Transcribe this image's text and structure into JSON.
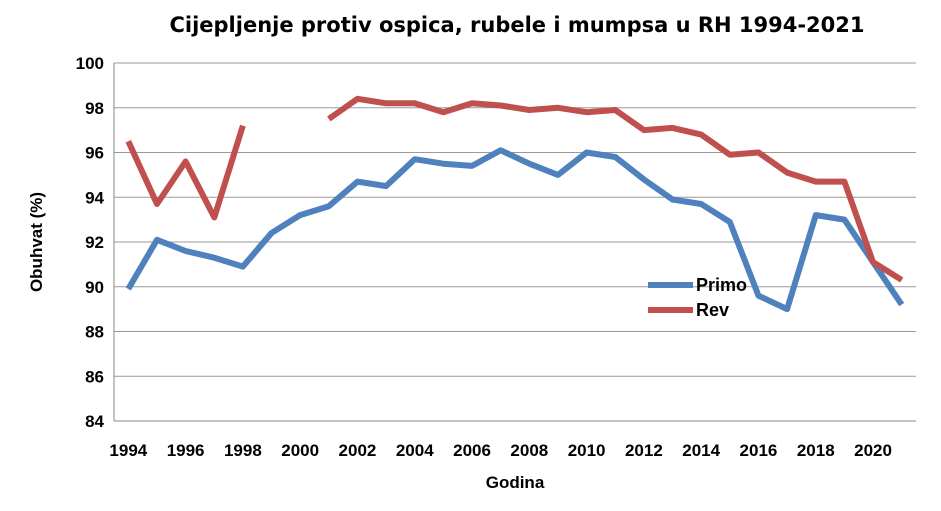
{
  "chart_data": {
    "type": "line",
    "title": "Cijepljenje protiv ospica, rubele i mumpsa u RH 1994-2021",
    "xlabel": "Godina",
    "ylabel": "Obuhvat (%)",
    "xlim": [
      1994,
      2021
    ],
    "ylim": [
      84,
      100
    ],
    "x_ticks": [
      "1994",
      "1996",
      "1998",
      "2000",
      "2002",
      "2004",
      "2006",
      "2008",
      "2010",
      "2012",
      "2014",
      "2016",
      "2018",
      "2020"
    ],
    "y_ticks": [
      "84",
      "86",
      "88",
      "90",
      "92",
      "94",
      "96",
      "98",
      "100"
    ],
    "grid": true,
    "legend_position": "right",
    "x": [
      1994,
      1995,
      1996,
      1997,
      1998,
      1999,
      2000,
      2001,
      2002,
      2003,
      2004,
      2005,
      2006,
      2007,
      2008,
      2009,
      2010,
      2011,
      2012,
      2013,
      2014,
      2015,
      2016,
      2017,
      2018,
      2019,
      2020,
      2021
    ],
    "series": [
      {
        "name": "Primo",
        "color": "#4F81BD",
        "values": [
          89.9,
          92.1,
          91.6,
          91.3,
          90.9,
          92.4,
          93.2,
          93.6,
          94.7,
          94.5,
          95.7,
          95.5,
          95.4,
          96.1,
          95.5,
          95.0,
          96.0,
          95.8,
          94.8,
          93.9,
          93.7,
          92.9,
          89.6,
          89.0,
          93.2,
          93.0,
          91.1,
          89.2
        ]
      },
      {
        "name": "Rev",
        "color": "#C0504D",
        "values": [
          96.5,
          93.7,
          95.6,
          93.1,
          97.2,
          null,
          null,
          97.5,
          98.4,
          98.2,
          98.2,
          97.8,
          98.2,
          98.1,
          97.9,
          98.0,
          97.8,
          97.9,
          97.0,
          97.1,
          96.8,
          95.9,
          96.0,
          95.1,
          94.7,
          94.7,
          91.1,
          90.3
        ]
      }
    ]
  }
}
